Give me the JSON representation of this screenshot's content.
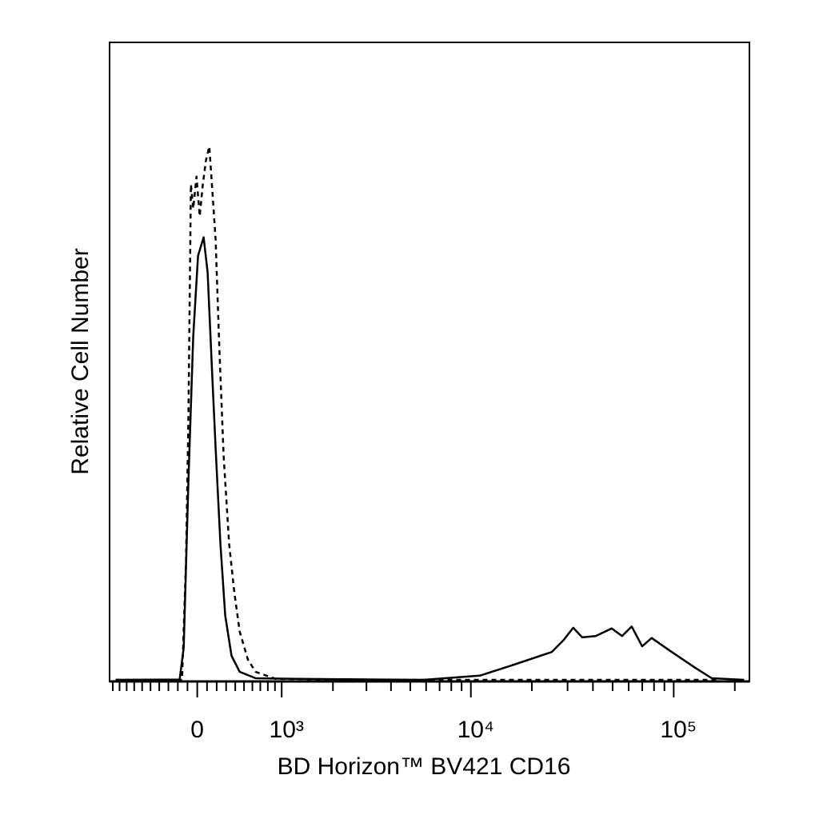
{
  "chart_data": {
    "type": "line",
    "xscale": "arcsinh",
    "xlabel": "BD Horizon™ BV421 CD16",
    "ylabel": "Relative Cell Number",
    "xlim": [
      -1050,
      236000
    ],
    "ylim": [
      0,
      100
    ],
    "xticks": [
      0,
      {
        "value": 1000,
        "label": "10³"
      },
      {
        "value": 10000,
        "label": "10⁴"
      },
      {
        "value": 100000,
        "label": "10⁵"
      }
    ],
    "xminorticks": [
      -1000,
      -900,
      -800,
      -700,
      -600,
      -500,
      -400,
      -300,
      -200,
      -100,
      100,
      200,
      300,
      400,
      500,
      600,
      700,
      800,
      900,
      2000,
      3000,
      4000,
      5000,
      6000,
      7000,
      8000,
      9000,
      20000,
      30000,
      40000,
      50000,
      60000,
      70000,
      80000,
      90000,
      200000
    ],
    "series": [
      {
        "color": "#000000",
        "line_style": "solid",
        "x": [
          -958,
          -181,
          -139,
          -90,
          -41,
          8,
          65,
          106,
          147,
          189,
          239,
          290,
          359,
          450,
          640,
          1230,
          5830,
          11060,
          15900,
          25050,
          28700,
          32000,
          35400,
          41300,
          49500,
          55700,
          62100,
          69900,
          77900,
          97800,
          128000,
          154000,
          222000
        ],
        "values": [
          0.25,
          0.3,
          5.3,
          31.5,
          54,
          66.6,
          69.5,
          64,
          50,
          36.5,
          21.5,
          10.3,
          4,
          1.5,
          0.5,
          0.4,
          0.25,
          0.9,
          2.5,
          4.6,
          6.5,
          8.4,
          6.9,
          7.1,
          8.3,
          7.1,
          8.6,
          5.5,
          6.8,
          4.6,
          2.1,
          0.5,
          0.25
        ]
      },
      {
        "color": "#000000",
        "line_style": "dashed",
        "x": [
          -958,
          -156,
          -115,
          -90,
          -65,
          -41,
          -8,
          25,
          57,
          90,
          123,
          156,
          189,
          223,
          273,
          333,
          389,
          450,
          546,
          640,
          911,
          4420,
          168000
        ],
        "values": [
          0.25,
          0.25,
          19,
          41.5,
          77.8,
          74,
          79,
          72.8,
          77.8,
          81.6,
          83.7,
          76.6,
          69.1,
          54,
          35.3,
          21.5,
          14,
          7.8,
          3.4,
          1.5,
          0.4,
          0.25,
          0.25
        ]
      }
    ]
  }
}
